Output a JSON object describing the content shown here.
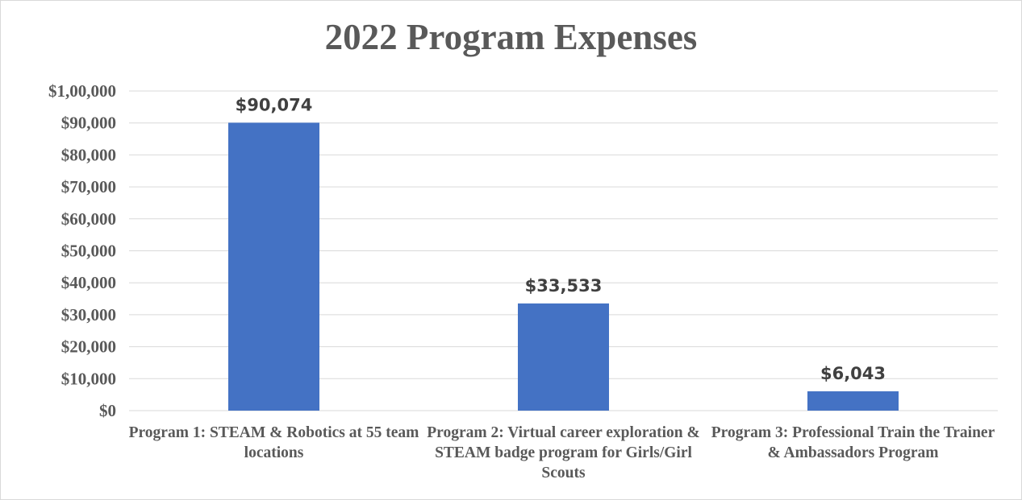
{
  "chart_data": {
    "type": "bar",
    "title": "2022 Program Expenses",
    "categories": [
      "Program 1: STEAM & Robotics at 55 team locations",
      "Program 2: Virtual career exploration & STEAM badge program for Girls/Girl Scouts",
      "Program 3: Professional Train the Trainer & Ambassadors Program"
    ],
    "values": [
      90074,
      33533,
      6043
    ],
    "data_labels": [
      "$90,074",
      "$33,533",
      "$6,043"
    ],
    "ylim": [
      0,
      100000
    ],
    "yticks": [
      0,
      10000,
      20000,
      30000,
      40000,
      50000,
      60000,
      70000,
      80000,
      90000,
      100000
    ],
    "ytick_labels": [
      "$0",
      "$10,000",
      "$20,000",
      "$30,000",
      "$40,000",
      "$50,000",
      "$60,000",
      "$70,000",
      "$80,000",
      "$90,000",
      "$1,00,000"
    ],
    "xlabel": "",
    "ylabel": "",
    "grid": true,
    "legend": "none",
    "bar_color": "#4472c4",
    "grid_color": "#d9d9d9"
  }
}
